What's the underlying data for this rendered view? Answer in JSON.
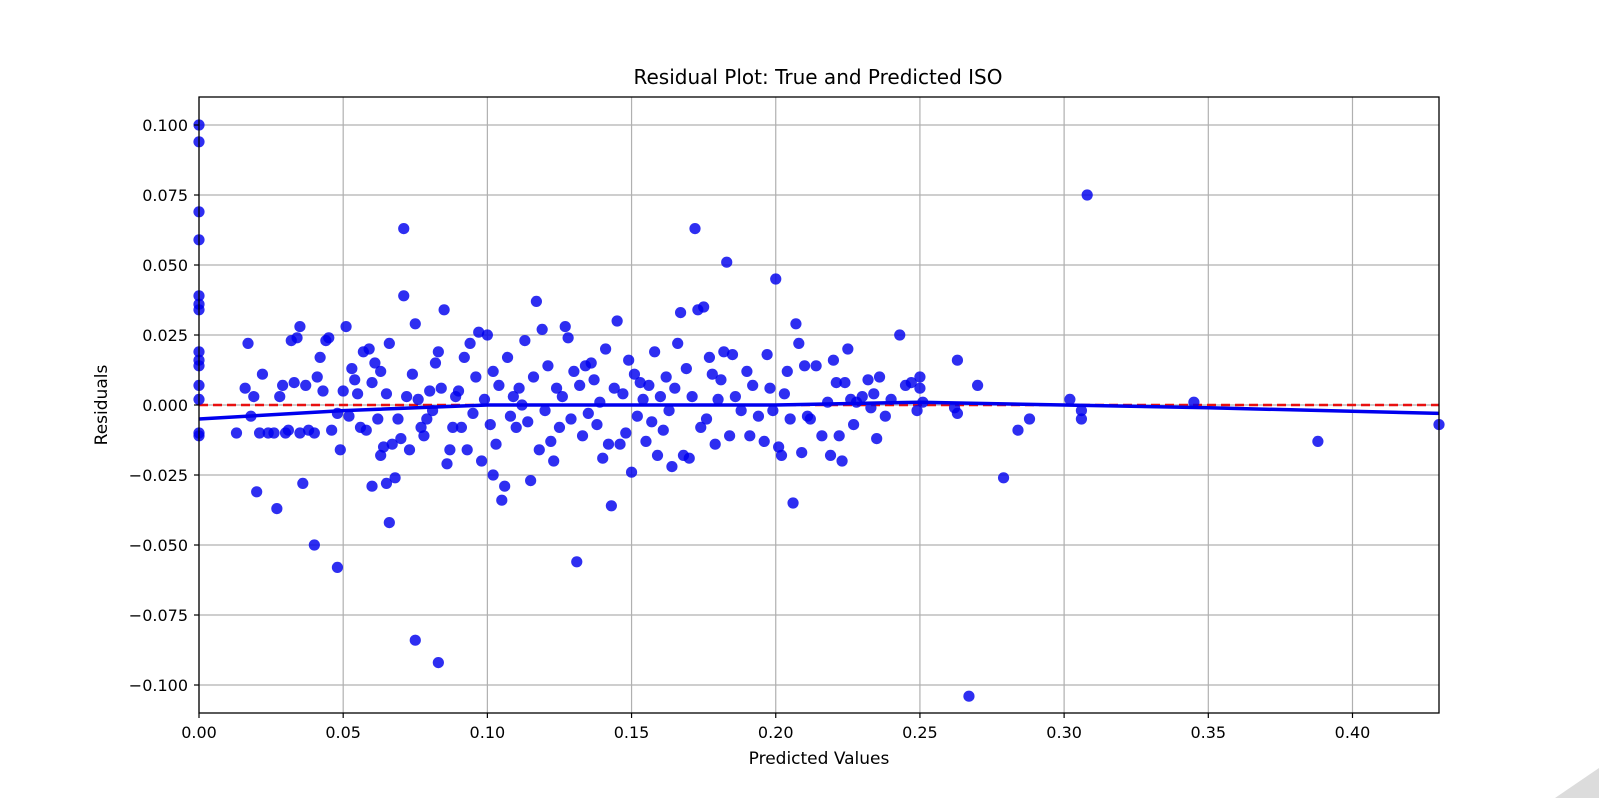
{
  "chart_data": {
    "type": "scatter",
    "title": "Residual Plot: True and Predicted ISO",
    "xlabel": "Predicted Values",
    "ylabel": "Residuals",
    "xlim": [
      0.0,
      0.43
    ],
    "ylim": [
      -0.11,
      0.11
    ],
    "x_ticks": [
      0.0,
      0.05,
      0.1,
      0.15,
      0.2,
      0.25,
      0.3,
      0.35,
      0.4
    ],
    "x_tick_labels": [
      "0.00",
      "0.05",
      "0.10",
      "0.15",
      "0.20",
      "0.25",
      "0.30",
      "0.35",
      "0.40"
    ],
    "y_ticks": [
      0.1,
      0.075,
      0.05,
      0.025,
      0.0,
      -0.025,
      -0.05,
      -0.075,
      -0.1
    ],
    "y_tick_labels": [
      "0.100",
      "0.075",
      "0.050",
      "0.025",
      "0.000",
      "−0.025",
      "−0.050",
      "−0.075",
      "−0.100"
    ],
    "grid": true,
    "point_color": "#0000ee",
    "trend_color": "#0000ee",
    "zero_line_color": "#e81010",
    "zero_line_value": 0.0,
    "trend_line": [
      [
        0.0,
        -0.005
      ],
      [
        0.05,
        -0.002
      ],
      [
        0.1,
        0.0
      ],
      [
        0.15,
        0.0
      ],
      [
        0.2,
        0.0
      ],
      [
        0.25,
        0.001
      ],
      [
        0.3,
        0.0
      ],
      [
        0.35,
        -0.001
      ],
      [
        0.43,
        -0.003
      ]
    ],
    "points": [
      [
        0.0,
        0.1
      ],
      [
        0.0,
        0.094
      ],
      [
        0.0,
        0.069
      ],
      [
        0.0,
        0.059
      ],
      [
        0.0,
        0.039
      ],
      [
        0.0,
        0.036
      ],
      [
        0.0,
        0.034
      ],
      [
        0.0,
        0.019
      ],
      [
        0.0,
        0.016
      ],
      [
        0.0,
        0.014
      ],
      [
        0.0,
        0.007
      ],
      [
        0.0,
        0.002
      ],
      [
        0.0,
        -0.01
      ],
      [
        0.0,
        -0.011
      ],
      [
        0.013,
        -0.01
      ],
      [
        0.016,
        0.006
      ],
      [
        0.017,
        0.022
      ],
      [
        0.018,
        -0.004
      ],
      [
        0.019,
        0.003
      ],
      [
        0.02,
        -0.031
      ],
      [
        0.021,
        -0.01
      ],
      [
        0.022,
        0.011
      ],
      [
        0.024,
        -0.01
      ],
      [
        0.026,
        -0.01
      ],
      [
        0.027,
        -0.037
      ],
      [
        0.028,
        0.003
      ],
      [
        0.029,
        0.007
      ],
      [
        0.03,
        -0.01
      ],
      [
        0.031,
        -0.009
      ],
      [
        0.032,
        0.023
      ],
      [
        0.033,
        0.008
      ],
      [
        0.034,
        0.024
      ],
      [
        0.035,
        0.028
      ],
      [
        0.035,
        -0.01
      ],
      [
        0.036,
        -0.028
      ],
      [
        0.037,
        0.007
      ],
      [
        0.038,
        -0.009
      ],
      [
        0.04,
        -0.05
      ],
      [
        0.04,
        -0.01
      ],
      [
        0.041,
        0.01
      ],
      [
        0.042,
        0.017
      ],
      [
        0.043,
        0.005
      ],
      [
        0.044,
        0.023
      ],
      [
        0.045,
        0.024
      ],
      [
        0.046,
        -0.009
      ],
      [
        0.048,
        -0.058
      ],
      [
        0.048,
        -0.003
      ],
      [
        0.049,
        -0.016
      ],
      [
        0.05,
        0.005
      ],
      [
        0.051,
        0.028
      ],
      [
        0.052,
        -0.004
      ],
      [
        0.053,
        0.013
      ],
      [
        0.054,
        0.009
      ],
      [
        0.055,
        0.004
      ],
      [
        0.056,
        -0.008
      ],
      [
        0.057,
        0.019
      ],
      [
        0.058,
        -0.009
      ],
      [
        0.059,
        0.02
      ],
      [
        0.06,
        -0.029
      ],
      [
        0.06,
        0.008
      ],
      [
        0.061,
        0.015
      ],
      [
        0.062,
        -0.005
      ],
      [
        0.063,
        -0.018
      ],
      [
        0.063,
        0.012
      ],
      [
        0.064,
        -0.015
      ],
      [
        0.065,
        -0.028
      ],
      [
        0.065,
        0.004
      ],
      [
        0.066,
        -0.042
      ],
      [
        0.066,
        0.022
      ],
      [
        0.067,
        -0.014
      ],
      [
        0.068,
        -0.026
      ],
      [
        0.069,
        -0.005
      ],
      [
        0.07,
        -0.012
      ],
      [
        0.071,
        0.063
      ],
      [
        0.071,
        0.039
      ],
      [
        0.072,
        0.003
      ],
      [
        0.073,
        -0.016
      ],
      [
        0.074,
        0.011
      ],
      [
        0.075,
        -0.084
      ],
      [
        0.075,
        0.029
      ],
      [
        0.076,
        0.002
      ],
      [
        0.077,
        -0.008
      ],
      [
        0.078,
        -0.011
      ],
      [
        0.079,
        -0.005
      ],
      [
        0.08,
        0.005
      ],
      [
        0.081,
        -0.002
      ],
      [
        0.082,
        0.015
      ],
      [
        0.083,
        -0.092
      ],
      [
        0.083,
        0.019
      ],
      [
        0.084,
        0.006
      ],
      [
        0.085,
        0.034
      ],
      [
        0.086,
        -0.021
      ],
      [
        0.087,
        -0.016
      ],
      [
        0.088,
        -0.008
      ],
      [
        0.089,
        0.003
      ],
      [
        0.09,
        0.005
      ],
      [
        0.091,
        -0.008
      ],
      [
        0.092,
        0.017
      ],
      [
        0.093,
        -0.016
      ],
      [
        0.094,
        0.022
      ],
      [
        0.095,
        -0.003
      ],
      [
        0.096,
        0.01
      ],
      [
        0.097,
        0.026
      ],
      [
        0.098,
        -0.02
      ],
      [
        0.099,
        0.002
      ],
      [
        0.1,
        0.025
      ],
      [
        0.101,
        -0.007
      ],
      [
        0.102,
        -0.025
      ],
      [
        0.102,
        0.012
      ],
      [
        0.103,
        -0.014
      ],
      [
        0.104,
        0.007
      ],
      [
        0.105,
        -0.034
      ],
      [
        0.106,
        -0.029
      ],
      [
        0.107,
        0.017
      ],
      [
        0.108,
        -0.004
      ],
      [
        0.109,
        0.003
      ],
      [
        0.11,
        -0.008
      ],
      [
        0.111,
        0.006
      ],
      [
        0.112,
        0.0
      ],
      [
        0.113,
        0.023
      ],
      [
        0.114,
        -0.006
      ],
      [
        0.115,
        -0.027
      ],
      [
        0.116,
        0.01
      ],
      [
        0.117,
        0.037
      ],
      [
        0.118,
        -0.016
      ],
      [
        0.119,
        0.027
      ],
      [
        0.12,
        -0.002
      ],
      [
        0.121,
        0.014
      ],
      [
        0.122,
        -0.013
      ],
      [
        0.123,
        -0.02
      ],
      [
        0.124,
        0.006
      ],
      [
        0.125,
        -0.008
      ],
      [
        0.126,
        0.003
      ],
      [
        0.127,
        0.028
      ],
      [
        0.128,
        0.024
      ],
      [
        0.129,
        -0.005
      ],
      [
        0.13,
        0.012
      ],
      [
        0.131,
        -0.056
      ],
      [
        0.132,
        0.007
      ],
      [
        0.133,
        -0.011
      ],
      [
        0.134,
        0.014
      ],
      [
        0.135,
        -0.003
      ],
      [
        0.136,
        0.015
      ],
      [
        0.137,
        0.009
      ],
      [
        0.138,
        -0.007
      ],
      [
        0.139,
        0.001
      ],
      [
        0.14,
        -0.019
      ],
      [
        0.141,
        0.02
      ],
      [
        0.142,
        -0.014
      ],
      [
        0.143,
        -0.036
      ],
      [
        0.144,
        0.006
      ],
      [
        0.145,
        0.03
      ],
      [
        0.146,
        -0.014
      ],
      [
        0.147,
        0.004
      ],
      [
        0.148,
        -0.01
      ],
      [
        0.149,
        0.016
      ],
      [
        0.15,
        -0.024
      ],
      [
        0.151,
        0.011
      ],
      [
        0.152,
        -0.004
      ],
      [
        0.153,
        0.008
      ],
      [
        0.154,
        0.002
      ],
      [
        0.155,
        -0.013
      ],
      [
        0.156,
        0.007
      ],
      [
        0.157,
        -0.006
      ],
      [
        0.158,
        0.019
      ],
      [
        0.159,
        -0.018
      ],
      [
        0.16,
        0.003
      ],
      [
        0.161,
        -0.009
      ],
      [
        0.162,
        0.01
      ],
      [
        0.163,
        -0.002
      ],
      [
        0.164,
        -0.022
      ],
      [
        0.165,
        0.006
      ],
      [
        0.166,
        0.022
      ],
      [
        0.167,
        0.033
      ],
      [
        0.168,
        -0.018
      ],
      [
        0.169,
        0.013
      ],
      [
        0.17,
        -0.019
      ],
      [
        0.171,
        0.003
      ],
      [
        0.172,
        0.063
      ],
      [
        0.173,
        0.034
      ],
      [
        0.174,
        -0.008
      ],
      [
        0.175,
        0.035
      ],
      [
        0.176,
        -0.005
      ],
      [
        0.177,
        0.017
      ],
      [
        0.178,
        0.011
      ],
      [
        0.179,
        -0.014
      ],
      [
        0.18,
        0.002
      ],
      [
        0.181,
        0.009
      ],
      [
        0.182,
        0.019
      ],
      [
        0.183,
        0.051
      ],
      [
        0.184,
        -0.011
      ],
      [
        0.185,
        0.018
      ],
      [
        0.186,
        0.003
      ],
      [
        0.188,
        -0.002
      ],
      [
        0.19,
        0.012
      ],
      [
        0.191,
        -0.011
      ],
      [
        0.192,
        0.007
      ],
      [
        0.194,
        -0.004
      ],
      [
        0.196,
        -0.013
      ],
      [
        0.197,
        0.018
      ],
      [
        0.198,
        0.006
      ],
      [
        0.199,
        -0.002
      ],
      [
        0.2,
        0.045
      ],
      [
        0.201,
        -0.015
      ],
      [
        0.202,
        -0.018
      ],
      [
        0.203,
        0.004
      ],
      [
        0.204,
        0.012
      ],
      [
        0.205,
        -0.005
      ],
      [
        0.206,
        -0.035
      ],
      [
        0.207,
        0.029
      ],
      [
        0.208,
        0.022
      ],
      [
        0.209,
        -0.017
      ],
      [
        0.21,
        0.014
      ],
      [
        0.211,
        -0.004
      ],
      [
        0.212,
        -0.005
      ],
      [
        0.214,
        0.014
      ],
      [
        0.216,
        -0.011
      ],
      [
        0.218,
        0.001
      ],
      [
        0.219,
        -0.018
      ],
      [
        0.22,
        0.016
      ],
      [
        0.221,
        0.008
      ],
      [
        0.222,
        -0.011
      ],
      [
        0.223,
        -0.02
      ],
      [
        0.224,
        0.008
      ],
      [
        0.225,
        0.02
      ],
      [
        0.226,
        0.002
      ],
      [
        0.227,
        -0.007
      ],
      [
        0.228,
        0.001
      ],
      [
        0.23,
        0.003
      ],
      [
        0.232,
        0.009
      ],
      [
        0.233,
        -0.001
      ],
      [
        0.234,
        0.004
      ],
      [
        0.235,
        -0.012
      ],
      [
        0.236,
        0.01
      ],
      [
        0.238,
        -0.004
      ],
      [
        0.24,
        0.002
      ],
      [
        0.243,
        0.025
      ],
      [
        0.245,
        0.007
      ],
      [
        0.247,
        0.008
      ],
      [
        0.249,
        -0.002
      ],
      [
        0.25,
        0.01
      ],
      [
        0.25,
        0.006
      ],
      [
        0.251,
        0.001
      ],
      [
        0.262,
        -0.001
      ],
      [
        0.263,
        0.016
      ],
      [
        0.263,
        -0.003
      ],
      [
        0.267,
        -0.104
      ],
      [
        0.27,
        0.007
      ],
      [
        0.279,
        -0.026
      ],
      [
        0.284,
        -0.009
      ],
      [
        0.288,
        -0.005
      ],
      [
        0.302,
        0.002
      ],
      [
        0.306,
        -0.002
      ],
      [
        0.306,
        -0.005
      ],
      [
        0.308,
        0.075
      ],
      [
        0.345,
        0.001
      ],
      [
        0.388,
        -0.013
      ],
      [
        0.43,
        -0.007
      ]
    ]
  }
}
